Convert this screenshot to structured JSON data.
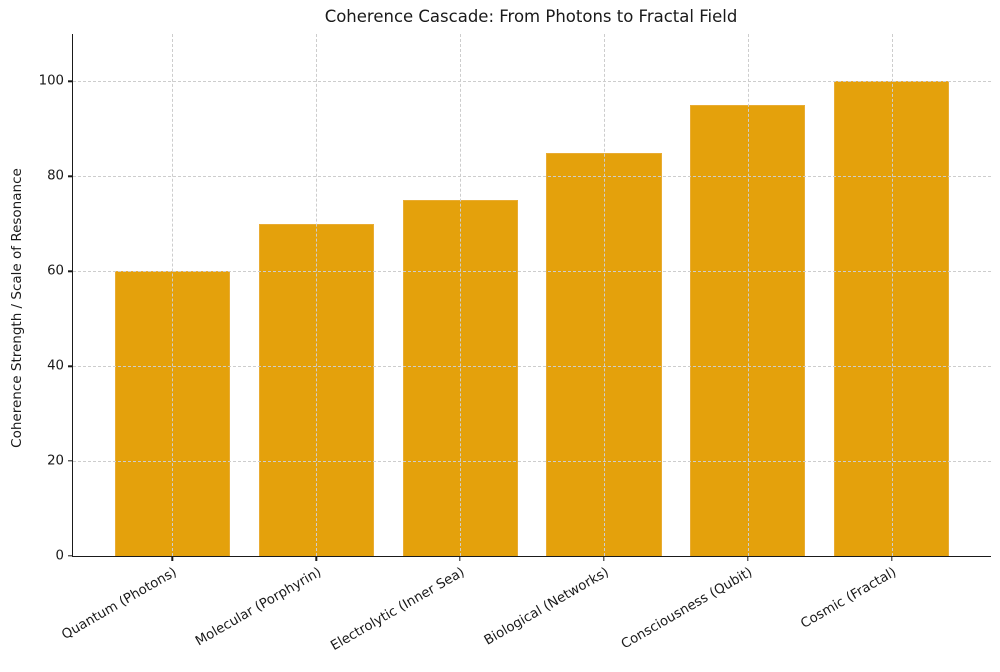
{
  "chart_data": {
    "type": "bar",
    "title": "Coherence Cascade: From Photons to Fractal Field",
    "xlabel": "",
    "ylabel": "Coherence Strength / Scale of Resonance",
    "categories": [
      "Quantum (Photons)",
      "Molecular (Porphyrin)",
      "Electrolytic (Inner Sea)",
      "Biological (Networks)",
      "Consciousness (Qubit)",
      "Cosmic (Fractal)"
    ],
    "values": [
      60,
      70,
      75,
      85,
      95,
      100
    ],
    "yticks": [
      0,
      20,
      40,
      60,
      80,
      100
    ],
    "ylim": [
      0,
      110
    ],
    "x_tick_rotation_deg": 30,
    "grid": true,
    "grid_style": "dashed",
    "grid_color": "#cdcdcd",
    "bar_color": "#E4A10C",
    "bar_edge_color": "#E9AC33",
    "axis_color": "#1a1a1a",
    "background_color": "#ffffff",
    "legend_position": "none",
    "spines": {
      "top": false,
      "right": false,
      "left": true,
      "bottom": true
    }
  }
}
